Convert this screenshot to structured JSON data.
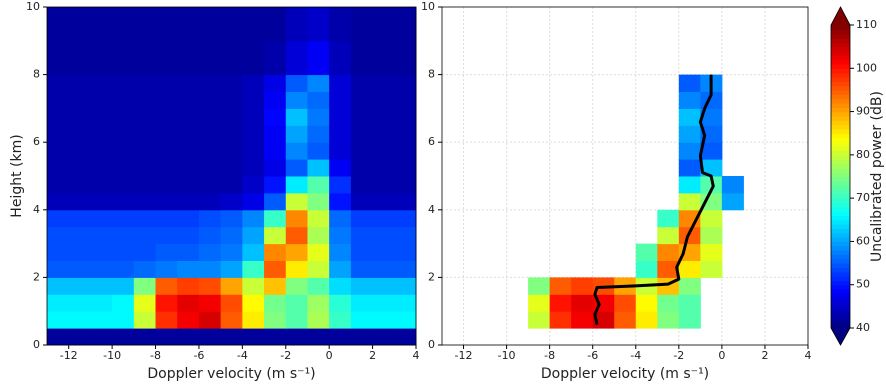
{
  "chart_data": [
    {
      "type": "heatmap",
      "xlabel": "Doppler velocity (m s⁻¹)",
      "ylabel": "Height (km)",
      "xlim": [
        -13,
        4
      ],
      "ylim": [
        0,
        10
      ],
      "xticks": [
        -12,
        -10,
        -8,
        -6,
        -4,
        -2,
        0,
        2,
        4
      ],
      "yticks": [
        0,
        2,
        4,
        6,
        8,
        10
      ],
      "grid": false,
      "colormap": "jet",
      "zlim": [
        40,
        110
      ],
      "x": [
        -13,
        -12,
        -11,
        -10,
        -9,
        -8,
        -7,
        -6,
        -5,
        -4,
        -3,
        -2,
        -1,
        0,
        1,
        2,
        3,
        4
      ],
      "y": [
        0,
        0.5,
        1,
        1.5,
        2,
        2.5,
        3,
        3.5,
        4,
        4.5,
        5,
        5.5,
        6,
        6.5,
        7,
        7.5,
        8,
        8.5,
        9,
        9.5,
        10
      ],
      "z": [
        [
          42,
          42,
          42,
          42,
          42,
          42,
          42,
          42,
          42,
          42,
          42,
          42,
          42,
          42,
          42,
          42,
          42
        ],
        [
          66,
          66,
          66,
          66,
          80,
          98,
          102,
          104,
          95,
          85,
          75,
          72,
          78,
          70,
          66,
          66,
          66
        ],
        [
          65,
          65,
          65,
          66,
          82,
          100,
          103,
          102,
          96,
          84,
          74,
          72,
          77,
          69,
          65,
          65,
          65
        ],
        [
          62,
          62,
          62,
          62,
          75,
          95,
          97,
          96,
          90,
          80,
          88,
          75,
          72,
          64,
          62,
          62,
          62
        ],
        [
          55,
          55,
          55,
          55,
          56,
          57,
          58,
          58,
          60,
          70,
          95,
          85,
          80,
          60,
          55,
          55,
          55
        ],
        [
          54,
          54,
          54,
          54,
          54,
          55,
          55,
          56,
          57,
          62,
          92,
          90,
          82,
          58,
          54,
          54,
          54
        ],
        [
          54,
          54,
          54,
          54,
          54,
          54,
          54,
          55,
          56,
          60,
          80,
          95,
          78,
          57,
          54,
          54,
          54
        ],
        [
          53,
          53,
          53,
          53,
          53,
          53,
          53,
          54,
          55,
          58,
          70,
          92,
          80,
          56,
          53,
          53,
          53
        ],
        [
          44,
          44,
          44,
          44,
          44,
          44,
          44,
          44,
          45,
          47,
          55,
          80,
          75,
          50,
          44,
          44,
          44
        ],
        [
          43,
          43,
          43,
          43,
          43,
          43,
          43,
          43,
          43,
          45,
          50,
          65,
          72,
          52,
          43,
          43,
          43
        ],
        [
          43,
          43,
          43,
          43,
          43,
          43,
          43,
          43,
          43,
          44,
          47,
          55,
          62,
          48,
          43,
          43,
          43
        ],
        [
          43,
          43,
          43,
          43,
          43,
          43,
          43,
          43,
          43,
          44,
          48,
          58,
          55,
          46,
          43,
          43,
          43
        ],
        [
          43,
          43,
          43,
          43,
          43,
          43,
          43,
          43,
          43,
          44,
          48,
          60,
          56,
          46,
          43,
          43,
          43
        ],
        [
          43,
          43,
          43,
          43,
          43,
          43,
          43,
          43,
          43,
          44,
          49,
          62,
          57,
          46,
          43,
          43,
          43
        ],
        [
          43,
          43,
          43,
          43,
          43,
          43,
          43,
          43,
          43,
          44,
          48,
          58,
          56,
          46,
          43,
          43,
          43
        ],
        [
          43,
          43,
          43,
          43,
          43,
          43,
          43,
          43,
          43,
          44,
          47,
          55,
          58,
          46,
          43,
          43,
          43
        ],
        [
          42,
          42,
          42,
          42,
          42,
          42,
          42,
          42,
          42,
          42,
          43,
          46,
          48,
          44,
          42,
          42,
          42
        ],
        [
          42,
          42,
          42,
          42,
          42,
          42,
          42,
          42,
          42,
          42,
          43,
          46,
          48,
          44,
          42,
          42,
          42
        ],
        [
          42,
          42,
          42,
          42,
          42,
          42,
          42,
          42,
          42,
          42,
          42,
          44,
          45,
          43,
          42,
          42,
          42
        ],
        [
          42,
          42,
          42,
          42,
          42,
          42,
          42,
          42,
          42,
          42,
          42,
          44,
          45,
          43,
          42,
          42,
          42
        ]
      ]
    },
    {
      "type": "heatmap",
      "xlabel": "Doppler velocity (m s⁻¹)",
      "xlim": [
        -13,
        4
      ],
      "ylim": [
        0,
        10
      ],
      "xticks": [
        -12,
        -10,
        -8,
        -6,
        -4,
        -2,
        0,
        2,
        4
      ],
      "yticks": [
        0,
        2,
        4,
        6,
        8,
        10
      ],
      "grid": true,
      "colormap": "jet",
      "zlim": [
        40,
        110
      ],
      "zticks": [
        40,
        50,
        60,
        70,
        80,
        90,
        100,
        110
      ],
      "zlabel": "Uncalibrated power (dB)",
      "x": [
        -13,
        -12,
        -11,
        -10,
        -9,
        -8,
        -7,
        -6,
        -5,
        -4,
        -3,
        -2,
        -1,
        0,
        1,
        2,
        3,
        4
      ],
      "y": [
        0,
        0.5,
        1,
        1.5,
        2,
        2.5,
        3,
        3.5,
        4,
        4.5,
        5,
        5.5,
        6,
        6.5,
        7,
        7.5,
        8,
        8.5,
        9,
        9.5,
        10
      ],
      "z": [
        [
          null,
          null,
          null,
          null,
          null,
          null,
          null,
          null,
          null,
          null,
          null,
          null,
          null,
          null,
          null,
          null,
          null
        ],
        [
          null,
          null,
          null,
          null,
          80,
          98,
          102,
          104,
          95,
          85,
          75,
          72,
          null,
          null,
          null,
          null,
          null
        ],
        [
          null,
          null,
          null,
          null,
          82,
          100,
          103,
          102,
          96,
          84,
          74,
          72,
          null,
          null,
          null,
          null,
          null
        ],
        [
          null,
          null,
          null,
          null,
          75,
          95,
          97,
          96,
          90,
          80,
          88,
          75,
          null,
          null,
          null,
          null,
          null
        ],
        [
          null,
          null,
          null,
          null,
          null,
          null,
          null,
          null,
          null,
          70,
          95,
          85,
          80,
          null,
          null,
          null,
          null
        ],
        [
          null,
          null,
          null,
          null,
          null,
          null,
          null,
          null,
          null,
          72,
          92,
          90,
          82,
          null,
          null,
          null,
          null
        ],
        [
          null,
          null,
          null,
          null,
          null,
          null,
          null,
          null,
          null,
          null,
          80,
          95,
          78,
          null,
          null,
          null,
          null
        ],
        [
          null,
          null,
          null,
          null,
          null,
          null,
          null,
          null,
          null,
          null,
          70,
          92,
          80,
          null,
          null,
          null,
          null
        ],
        [
          null,
          null,
          null,
          null,
          null,
          null,
          null,
          null,
          null,
          null,
          null,
          80,
          75,
          60,
          null,
          null,
          null
        ],
        [
          null,
          null,
          null,
          null,
          null,
          null,
          null,
          null,
          null,
          null,
          null,
          65,
          72,
          58,
          null,
          null,
          null
        ],
        [
          null,
          null,
          null,
          null,
          null,
          null,
          null,
          null,
          null,
          null,
          null,
          55,
          62,
          null,
          null,
          null,
          null
        ],
        [
          null,
          null,
          null,
          null,
          null,
          null,
          null,
          null,
          null,
          null,
          null,
          58,
          55,
          null,
          null,
          null,
          null
        ],
        [
          null,
          null,
          null,
          null,
          null,
          null,
          null,
          null,
          null,
          null,
          null,
          60,
          56,
          null,
          null,
          null,
          null
        ],
        [
          null,
          null,
          null,
          null,
          null,
          null,
          null,
          null,
          null,
          null,
          null,
          62,
          57,
          null,
          null,
          null,
          null
        ],
        [
          null,
          null,
          null,
          null,
          null,
          null,
          null,
          null,
          null,
          null,
          null,
          58,
          56,
          null,
          null,
          null,
          null
        ],
        [
          null,
          null,
          null,
          null,
          null,
          null,
          null,
          null,
          null,
          null,
          null,
          55,
          58,
          null,
          null,
          null,
          null
        ],
        [
          null,
          null,
          null,
          null,
          null,
          null,
          null,
          null,
          null,
          null,
          null,
          null,
          null,
          null,
          null,
          null,
          null
        ],
        [
          null,
          null,
          null,
          null,
          null,
          null,
          null,
          null,
          null,
          null,
          null,
          null,
          null,
          null,
          null,
          null,
          null
        ],
        [
          null,
          null,
          null,
          null,
          null,
          null,
          null,
          null,
          null,
          null,
          null,
          null,
          null,
          null,
          null,
          null,
          null
        ],
        [
          null,
          null,
          null,
          null,
          null,
          null,
          null,
          null,
          null,
          null,
          null,
          null,
          null,
          null,
          null,
          null,
          null
        ]
      ],
      "series": [
        {
          "color": "#000000",
          "x": [
            -5.8,
            -5.9,
            -5.7,
            -5.9,
            -5.8,
            -4,
            -2.5,
            -2,
            -2.1,
            -1.8,
            -1.6,
            -1.2,
            -0.8,
            -0.4,
            -0.5,
            -0.9,
            -1.0,
            -0.8,
            -1.0,
            -0.8,
            -0.5,
            -0.5
          ],
          "y": [
            0.6,
            0.9,
            1.2,
            1.5,
            1.7,
            1.75,
            1.8,
            1.95,
            2.3,
            2.7,
            3.2,
            3.7,
            4.2,
            4.7,
            5.0,
            5.1,
            5.6,
            6.2,
            6.6,
            7.0,
            7.4,
            8.0
          ]
        }
      ]
    }
  ]
}
